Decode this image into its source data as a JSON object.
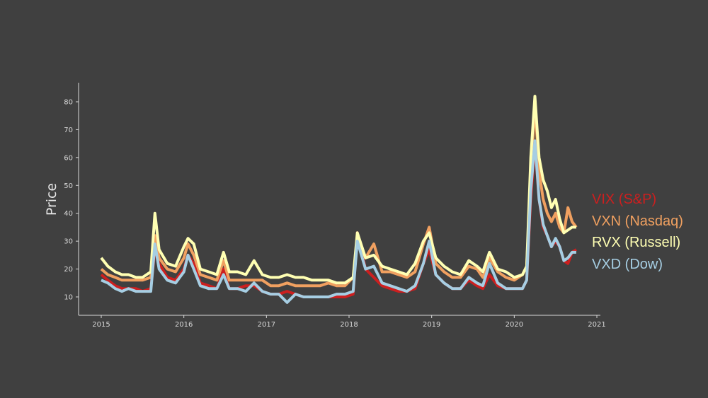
{
  "chart_data": {
    "type": "line",
    "title": "",
    "xlabel": "",
    "ylabel": "Price",
    "xlim": [
      2014.7,
      2021.05
    ],
    "ylim": [
      4,
      87
    ],
    "xticks": [
      "2015",
      "2016",
      "2017",
      "2018",
      "2019",
      "2020",
      "2021"
    ],
    "yticks": [
      "10",
      "20",
      "30",
      "40",
      "50",
      "60",
      "70",
      "80"
    ],
    "grid": false,
    "legend_position": "right, outside plot",
    "background": "#404040",
    "x": [
      2015.0,
      2015.08,
      2015.17,
      2015.25,
      2015.33,
      2015.42,
      2015.5,
      2015.6,
      2015.65,
      2015.7,
      2015.8,
      2015.9,
      2016.0,
      2016.05,
      2016.12,
      2016.2,
      2016.3,
      2016.4,
      2016.48,
      2016.55,
      2016.65,
      2016.75,
      2016.85,
      2016.95,
      2017.05,
      2017.15,
      2017.25,
      2017.35,
      2017.45,
      2017.55,
      2017.65,
      2017.75,
      2017.85,
      2017.95,
      2018.05,
      2018.1,
      2018.2,
      2018.3,
      2018.4,
      2018.5,
      2018.6,
      2018.7,
      2018.8,
      2018.9,
      2018.97,
      2019.05,
      2019.15,
      2019.25,
      2019.35,
      2019.45,
      2019.55,
      2019.62,
      2019.7,
      2019.8,
      2019.9,
      2020.0,
      2020.1,
      2020.15,
      2020.2,
      2020.25,
      2020.3,
      2020.35,
      2020.4,
      2020.45,
      2020.5,
      2020.55,
      2020.6,
      2020.65,
      2020.7,
      2020.75
    ],
    "series": [
      {
        "name": "VIX (S&P)",
        "color": "#cc1f1f",
        "values": [
          18,
          16,
          14,
          13,
          13,
          13,
          12,
          13,
          27,
          22,
          17,
          16,
          20,
          25,
          22,
          15,
          14,
          13,
          20,
          13,
          13,
          14,
          14,
          12,
          11,
          11,
          12,
          11,
          10,
          10,
          10,
          10,
          10,
          10,
          11,
          33,
          20,
          17,
          14,
          13,
          12,
          12,
          13,
          22,
          27,
          18,
          15,
          13,
          13,
          16,
          14,
          13,
          18,
          14,
          13,
          13,
          13,
          16,
          45,
          65,
          45,
          35,
          32,
          28,
          30,
          28,
          23,
          22,
          26,
          27
        ]
      },
      {
        "name": "VXN (Nasdaq)",
        "color": "#f0a060",
        "values": [
          20,
          18,
          17,
          16,
          16,
          16,
          16,
          17,
          32,
          24,
          20,
          19,
          24,
          29,
          25,
          18,
          17,
          16,
          23,
          16,
          16,
          16,
          16,
          16,
          14,
          14,
          15,
          14,
          14,
          14,
          14,
          15,
          14,
          14,
          17,
          30,
          24,
          29,
          19,
          19,
          18,
          17,
          19,
          29,
          35,
          22,
          19,
          17,
          17,
          21,
          20,
          17,
          24,
          19,
          17,
          16,
          18,
          21,
          52,
          80,
          55,
          45,
          40,
          37,
          40,
          35,
          33,
          42,
          37,
          35
        ]
      },
      {
        "name": "RVX (Russell)",
        "color": "#ffffb3",
        "values": [
          24,
          21,
          19,
          18,
          18,
          17,
          17,
          19,
          40,
          27,
          22,
          21,
          28,
          31,
          29,
          20,
          19,
          18,
          26,
          19,
          19,
          18,
          23,
          18,
          17,
          17,
          18,
          17,
          17,
          16,
          16,
          16,
          15,
          15,
          17,
          33,
          24,
          25,
          21,
          20,
          19,
          18,
          22,
          30,
          33,
          24,
          21,
          19,
          18,
          23,
          21,
          19,
          26,
          20,
          19,
          17,
          18,
          21,
          60,
          82,
          60,
          52,
          48,
          42,
          45,
          38,
          33,
          34,
          35,
          35
        ]
      },
      {
        "name": "VXD (Dow)",
        "color": "#a6cee3",
        "values": [
          16,
          15,
          13,
          12,
          13,
          12,
          12,
          12,
          29,
          20,
          16,
          15,
          19,
          25,
          20,
          14,
          13,
          13,
          18,
          13,
          13,
          12,
          15,
          12,
          11,
          11,
          8,
          11,
          10,
          10,
          10,
          10,
          11,
          11,
          12,
          30,
          20,
          21,
          15,
          14,
          13,
          12,
          14,
          22,
          30,
          18,
          15,
          13,
          13,
          17,
          15,
          14,
          22,
          15,
          13,
          13,
          13,
          16,
          48,
          66,
          45,
          36,
          32,
          28,
          31,
          28,
          23,
          24,
          26,
          26
        ]
      }
    ]
  },
  "axes": {
    "ylabel": "Price",
    "xticks": [
      "2015",
      "2016",
      "2017",
      "2018",
      "2019",
      "2020",
      "2021"
    ],
    "yticks": [
      "10",
      "20",
      "30",
      "40",
      "50",
      "60",
      "70",
      "80"
    ]
  },
  "legend": [
    {
      "label": "VIX (S&P)",
      "color": "#cc1f1f"
    },
    {
      "label": "VXN (Nasdaq)",
      "color": "#f0a060"
    },
    {
      "label": "RVX (Russell)",
      "color": "#ffffb3"
    },
    {
      "label": "VXD (Dow)",
      "color": "#a6cee3"
    }
  ]
}
